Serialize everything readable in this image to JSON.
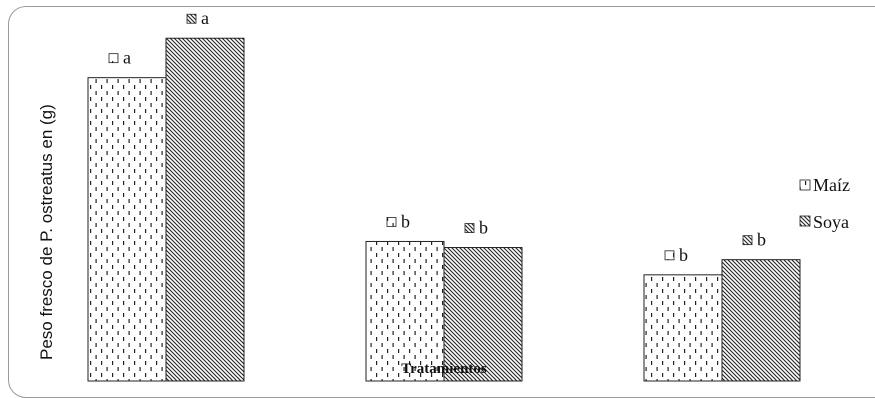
{
  "chart_data": {
    "type": "bar",
    "title": "",
    "xlabel": "Tratamientos",
    "ylabel": "Peso fresco de P. ostreatus en (g)",
    "categories": [
      "",
      "",
      ""
    ],
    "series": [
      {
        "name": "Maíz",
        "pattern": "dots",
        "values": [
          10.0,
          4.6,
          3.5
        ],
        "labels": [
          "a",
          "b",
          "b"
        ]
      },
      {
        "name": "Soya",
        "pattern": "diagonal-hatch",
        "values": [
          11.3,
          4.4,
          4.0
        ],
        "labels": [
          "a",
          "b",
          "b"
        ]
      }
    ],
    "ylim": [
      0,
      12
    ],
    "grid": false,
    "legend": "right"
  }
}
